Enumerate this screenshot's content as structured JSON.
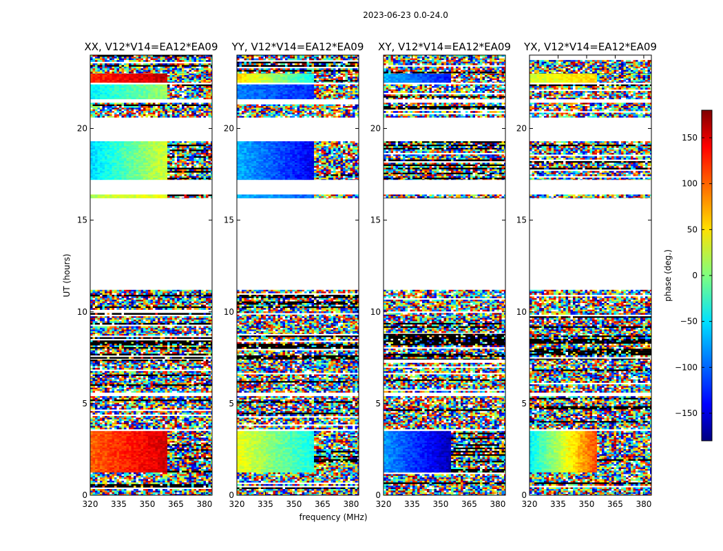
{
  "figure": {
    "suptitle": "2023-06-23 0.0-24.0",
    "xlabel": "frequency (MHz)",
    "ylabel": "UT (hours)"
  },
  "chart_data": {
    "type": "heatmap",
    "x_ticks": [
      "320",
      "335",
      "350",
      "365",
      "380"
    ],
    "x_tick_values": [
      320,
      335,
      350,
      365,
      380
    ],
    "xlim": [
      320,
      384
    ],
    "y_ticks": [
      "0",
      "5",
      "10",
      "15",
      "20"
    ],
    "y_tick_values": [
      0,
      5,
      10,
      15,
      20
    ],
    "ylim": [
      0,
      24
    ],
    "colorscale": "jet",
    "panels": [
      {
        "title": "XX, V12*V14=EA12*EA09",
        "bands": [
          {
            "y": [
              0.0,
              1.6
            ],
            "pattern": "noise"
          },
          {
            "y": [
              1.25,
              3.5
            ],
            "pattern": "smooth",
            "from": 100,
            "to": 150,
            "split": 360,
            "right": "noise"
          },
          {
            "y": [
              3.6,
              5.4
            ],
            "pattern": "noise"
          },
          {
            "y": [
              5.6,
              7.4
            ],
            "pattern": "noise"
          },
          {
            "y": [
              7.4,
              8.8
            ],
            "pattern": "dark"
          },
          {
            "y": [
              8.8,
              11.2
            ],
            "pattern": "noise"
          },
          {
            "y": [
              16.2,
              16.4
            ],
            "pattern": "smooth",
            "from": 20,
            "to": 40,
            "split": 360,
            "right": "noise"
          },
          {
            "y": [
              17.2,
              19.3
            ],
            "pattern": "smooth",
            "from": -60,
            "to": 30,
            "split": 360,
            "right": "noise"
          },
          {
            "y": [
              20.6,
              21.4
            ],
            "pattern": "noise"
          },
          {
            "y": [
              21.6,
              22.4
            ],
            "pattern": "smooth",
            "from": -50,
            "to": 10,
            "split": 360,
            "right": "noise"
          },
          {
            "y": [
              22.5,
              23.0
            ],
            "pattern": "smooth",
            "from": 120,
            "to": 160,
            "split": 360,
            "right": "noise"
          },
          {
            "y": [
              23.0,
              24.0
            ],
            "pattern": "noise"
          }
        ]
      },
      {
        "title": "YY, V12*V14=EA12*EA09",
        "bands": [
          {
            "y": [
              0.0,
              1.6
            ],
            "pattern": "noise"
          },
          {
            "y": [
              1.25,
              3.5
            ],
            "pattern": "smooth",
            "from": 40,
            "to": -40,
            "split": 360,
            "right": "noise"
          },
          {
            "y": [
              3.6,
              5.4
            ],
            "pattern": "noise"
          },
          {
            "y": [
              5.6,
              7.4
            ],
            "pattern": "noise"
          },
          {
            "y": [
              7.4,
              8.8
            ],
            "pattern": "dark"
          },
          {
            "y": [
              8.8,
              11.2
            ],
            "pattern": "noise"
          },
          {
            "y": [
              16.2,
              16.4
            ],
            "pattern": "smooth",
            "from": -70,
            "to": -100,
            "split": 360,
            "right": "noise"
          },
          {
            "y": [
              17.2,
              19.3
            ],
            "pattern": "smooth",
            "from": -70,
            "to": -140,
            "split": 360,
            "right": "noise"
          },
          {
            "y": [
              20.6,
              21.4
            ],
            "pattern": "noise"
          },
          {
            "y": [
              21.6,
              22.4
            ],
            "pattern": "smooth",
            "from": -90,
            "to": -120,
            "split": 360,
            "right": "noise"
          },
          {
            "y": [
              22.5,
              23.0
            ],
            "pattern": "smooth",
            "from": 60,
            "to": -40,
            "split": 360,
            "right": "noise"
          },
          {
            "y": [
              23.0,
              24.0
            ],
            "pattern": "noise"
          }
        ]
      },
      {
        "title": "XY, V12*V14=EA12*EA09",
        "bands": [
          {
            "y": [
              0.0,
              1.6
            ],
            "pattern": "noise"
          },
          {
            "y": [
              1.25,
              3.5
            ],
            "pattern": "smooth",
            "from": -80,
            "to": -160,
            "split": 355,
            "right": "noise"
          },
          {
            "y": [
              3.6,
              5.4
            ],
            "pattern": "noise"
          },
          {
            "y": [
              5.6,
              7.4
            ],
            "pattern": "noise"
          },
          {
            "y": [
              7.4,
              8.8
            ],
            "pattern": "dark"
          },
          {
            "y": [
              8.8,
              11.2
            ],
            "pattern": "noise"
          },
          {
            "y": [
              16.2,
              16.4
            ],
            "pattern": "noise"
          },
          {
            "y": [
              17.2,
              19.3
            ],
            "pattern": "noise"
          },
          {
            "y": [
              20.6,
              21.4
            ],
            "pattern": "noise"
          },
          {
            "y": [
              21.6,
              22.4
            ],
            "pattern": "noise"
          },
          {
            "y": [
              22.5,
              23.0
            ],
            "pattern": "smooth",
            "from": -70,
            "to": -130,
            "split": 355,
            "right": "noise"
          },
          {
            "y": [
              23.0,
              24.0
            ],
            "pattern": "noise"
          }
        ]
      },
      {
        "title": "YX, V12*V14=EA12*EA09",
        "bands": [
          {
            "y": [
              0.0,
              1.6
            ],
            "pattern": "noise"
          },
          {
            "y": [
              1.25,
              3.5
            ],
            "pattern": "smooth",
            "from": -50,
            "to": 110,
            "split": 355,
            "right": "noise"
          },
          {
            "y": [
              3.6,
              5.4
            ],
            "pattern": "noise"
          },
          {
            "y": [
              5.6,
              7.4
            ],
            "pattern": "noise"
          },
          {
            "y": [
              7.4,
              8.8
            ],
            "pattern": "dark"
          },
          {
            "y": [
              8.8,
              11.2
            ],
            "pattern": "noise"
          },
          {
            "y": [
              16.2,
              16.4
            ],
            "pattern": "noise"
          },
          {
            "y": [
              17.2,
              19.3
            ],
            "pattern": "noise"
          },
          {
            "y": [
              20.6,
              21.4
            ],
            "pattern": "noise"
          },
          {
            "y": [
              21.6,
              22.4
            ],
            "pattern": "noise"
          },
          {
            "y": [
              22.5,
              23.0
            ],
            "pattern": "smooth",
            "from": 30,
            "to": 60,
            "split": 355,
            "right": "noise"
          },
          {
            "y": [
              23.0,
              24.0
            ],
            "pattern": "noise"
          }
        ]
      }
    ],
    "colorbar": {
      "label": "phase (deg.)",
      "range": [
        -180,
        180
      ],
      "ticks": [
        "150",
        "100",
        "50",
        "0",
        "−50",
        "−100",
        "−150"
      ],
      "tick_values": [
        150,
        100,
        50,
        0,
        -50,
        -100,
        -150
      ]
    }
  }
}
